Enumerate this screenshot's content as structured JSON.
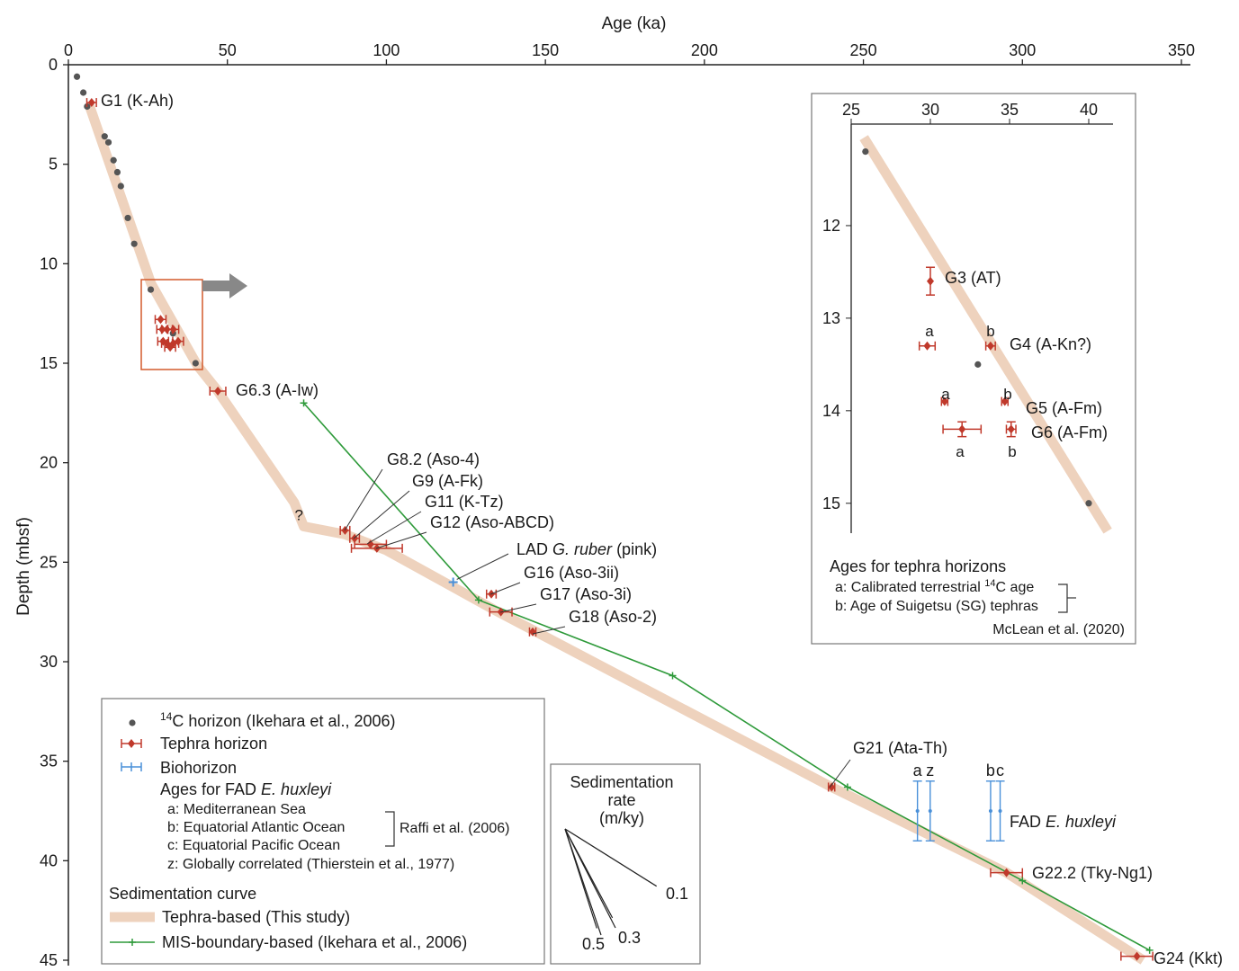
{
  "chart_data": {
    "type": "scatter",
    "x_axis": {
      "label": "Age (ka)",
      "range": [
        0,
        350
      ],
      "ticks": [
        0,
        50,
        100,
        150,
        200,
        250,
        300,
        350
      ]
    },
    "y_axis": {
      "label": "Depth (mbsf)",
      "range": [
        0,
        45
      ],
      "reversed": true,
      "ticks": [
        0,
        5,
        10,
        15,
        20,
        25,
        30,
        35,
        40,
        45
      ]
    },
    "c14_points": [
      [
        2.7,
        0.6
      ],
      [
        4.7,
        1.4
      ],
      [
        5.9,
        2.1
      ],
      [
        11.4,
        3.6
      ],
      [
        12.6,
        3.9
      ],
      [
        14.2,
        4.8
      ],
      [
        15.4,
        5.4
      ],
      [
        16.5,
        6.1
      ],
      [
        18.7,
        7.7
      ],
      [
        20.7,
        9.0
      ],
      [
        25.9,
        11.3
      ],
      [
        32.9,
        13.5
      ],
      [
        40.0,
        15.0
      ]
    ],
    "tephra_curve": [
      [
        6.5,
        2.0
      ],
      [
        26.0,
        11.0
      ],
      [
        40.5,
        15.1
      ],
      [
        47,
        16.4
      ],
      [
        71,
        22.0
      ],
      [
        74,
        23.2
      ],
      [
        87,
        23.6
      ],
      [
        100,
        24.4
      ],
      [
        134,
        27.4
      ],
      [
        240,
        36.3
      ],
      [
        295,
        40.6
      ],
      [
        338,
        45.0
      ]
    ],
    "mis_curve": [
      [
        74,
        17.0
      ],
      [
        129,
        26.9
      ],
      [
        190,
        30.7
      ],
      [
        245,
        36.3
      ],
      [
        300,
        41.0
      ],
      [
        340,
        44.5
      ]
    ],
    "unknown_marker": {
      "label": "?",
      "age": 74,
      "depth": 22.8
    },
    "tephra_points": [
      {
        "age": 7.3,
        "depth": 1.9,
        "err": 1.5,
        "label": "G1 (K-Ah)"
      },
      {
        "age": 47.0,
        "depth": 16.4,
        "err": 2.5,
        "label": "G6.3 (A-Iw)"
      },
      {
        "age": 87.0,
        "depth": 23.4,
        "err": 1.5,
        "label": "G8.2 (Aso-4)"
      },
      {
        "age": 90.0,
        "depth": 23.8,
        "err": 1.5,
        "label": "G9 (A-Fk)"
      },
      {
        "age": 95.0,
        "depth": 24.1,
        "err": 5.0,
        "label": "G11 (K-Tz)"
      },
      {
        "age": 97.0,
        "depth": 24.3,
        "err": 8.0,
        "label": "G12 (Aso-ABCD)"
      },
      {
        "age": 133.0,
        "depth": 26.6,
        "err": 1.5,
        "label": "G16 (Aso-3ii)"
      },
      {
        "age": 136.0,
        "depth": 27.5,
        "err": 3.5,
        "label": "G17 (Aso-3i)"
      },
      {
        "age": 146.0,
        "depth": 28.5,
        "err": 1.0,
        "label": "G18 (Aso-2)"
      },
      {
        "age": 240.0,
        "depth": 36.3,
        "err": 1.0,
        "label": "G21 (Ata-Th)"
      },
      {
        "age": 295.0,
        "depth": 40.6,
        "err": 5.0,
        "label": "G22.2 (Tky-Ng1)"
      },
      {
        "age": 336.0,
        "depth": 44.8,
        "err": 5.0,
        "label": "G24 (Kkt)"
      }
    ],
    "bio_point": {
      "age": 121,
      "depth": 26.0,
      "label": "LAD G. ruber (pink)"
    },
    "fad_ehuxleyi": {
      "label": "FAD E. huxleyi",
      "depth": 37.5,
      "ranges": [
        {
          "age": 267,
          "key": "a"
        },
        {
          "age": 271,
          "key": "z"
        },
        {
          "age": 290,
          "key": "b"
        },
        {
          "age": 293,
          "key": "c"
        }
      ],
      "depth_top": 36.0,
      "depth_bottom": 39.0
    },
    "inset": {
      "x_range": [
        25,
        40
      ],
      "x_ticks": [
        25,
        30,
        35,
        40
      ],
      "y_range": [
        11.0,
        15.0
      ],
      "y_ticks": [
        12,
        13,
        14,
        15
      ],
      "c14_points": [
        [
          25.9,
          11.2
        ],
        [
          33.0,
          13.5
        ],
        [
          40.0,
          15.0
        ]
      ],
      "tephra": [
        {
          "age": 30.0,
          "depth": 12.6,
          "err_x": 0,
          "err_y": 0.15,
          "label": "G3 (AT)"
        },
        {
          "age": 29.8,
          "depth": 13.3,
          "err_x": 0.5,
          "err_y": 0,
          "key": "a"
        },
        {
          "age": 33.8,
          "depth": 13.3,
          "err_x": 0.3,
          "err_y": 0,
          "key": "b",
          "label": "G4 (A-Kn?)"
        },
        {
          "age": 30.9,
          "depth": 13.9,
          "err_x": 0.2,
          "err_y": 0,
          "key": "a"
        },
        {
          "age": 34.7,
          "depth": 13.9,
          "err_x": 0.2,
          "err_y": 0,
          "key": "b",
          "label": "G5 (A-Fm)"
        },
        {
          "age": 32.0,
          "depth": 14.2,
          "err_x": 1.2,
          "err_y": 0.08,
          "key": "a"
        },
        {
          "age": 35.1,
          "depth": 14.2,
          "err_x": 0.3,
          "err_y": 0.08,
          "key": "b",
          "label": "G6 (A-Fm)"
        }
      ],
      "legend_title": "Ages for tephra horizons",
      "legend_a": "a: Calibrated terrestrial ",
      "legend_a_sup": "14",
      "legend_a_end": "C age",
      "legend_b": "b: Age of Suigetsu (SG) tephras",
      "legend_ref": "McLean et al. (2020)"
    },
    "legend": {
      "c14_sup": "14",
      "c14": "C horizon (Ikehara et al., 2006)",
      "tephra": "Tephra horizon",
      "bio": "Biohorizon",
      "fad_title_pre": "Ages for FAD ",
      "fad_title_it": "E. huxleyi",
      "fad_a": "a: Mediterranean Sea",
      "fad_b": "b: Equatorial Atlantic Ocean",
      "fad_c": "c: Equatorial Pacific Ocean",
      "fad_ref": "Raffi et al. (2006)",
      "fad_z": "z: Globally correlated (Thierstein et al., 1977)",
      "curve_title": "Sedimentation curve",
      "curve_tephra": "Tephra-based (This study)",
      "curve_mis": "MIS-boundary-based (Ikehara et al., 2006)"
    },
    "rate_box": {
      "title_lines": [
        "Sedimentation",
        "rate",
        "(m/ky)"
      ],
      "rates": [
        0.1,
        0.3,
        0.5
      ],
      "labels": [
        "0.1",
        "0.3",
        "0.5"
      ]
    },
    "colors": {
      "curve": "#eed2bd",
      "mis": "#2e9a3a",
      "tephra": "#c0392b",
      "c14": "#555555",
      "bio": "#4a90d9",
      "box": "#d35a2c"
    }
  }
}
